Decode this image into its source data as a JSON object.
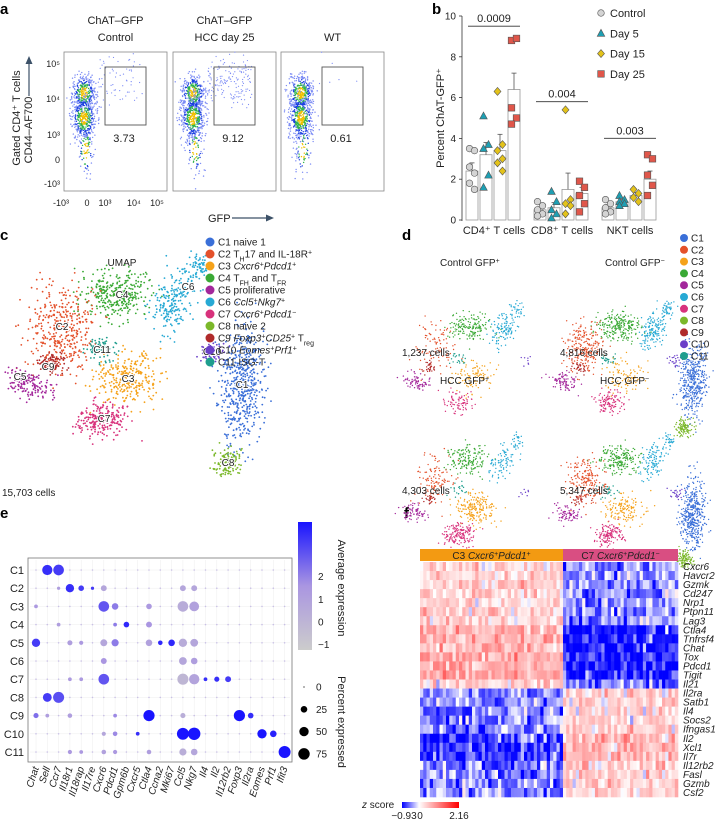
{
  "panel_labels": {
    "a": "a",
    "b": "b",
    "c": "c",
    "d": "d",
    "e": "e",
    "f": "f"
  },
  "panel_a": {
    "y_label_1": "Gated CD4⁺ T cells",
    "y_label_2": "CD44–AF700",
    "x_label": "GFP",
    "y_ticks": [
      "10⁵",
      "10⁴",
      "10³",
      "0",
      "-10³"
    ],
    "x_ticks": [
      "-10³",
      "0",
      "10³",
      "10⁴",
      "10⁵"
    ],
    "plots": [
      {
        "title1": "ChAT–GFP",
        "title2": "Control",
        "gate_pct": "3.73"
      },
      {
        "title1": "ChAT–GFP",
        "title2": "HCC day 25",
        "gate_pct": "9.12"
      },
      {
        "title1": "",
        "title2": "WT",
        "gate_pct": "0.61"
      }
    ]
  },
  "chart_data": {
    "type": "bar",
    "title": "",
    "ylabel": "Percent ChAT-GFP⁺",
    "ylim": [
      0,
      10
    ],
    "y_ticks": [
      "0",
      "2",
      "4",
      "6",
      "8",
      "10"
    ],
    "categories": [
      "CD4⁺ T cells",
      "CD8⁺ T cells",
      "NKT cells"
    ],
    "series": [
      {
        "name": "Control",
        "color": "#d4d4d4",
        "marker": "circle",
        "means": [
          2.4,
          0.5,
          0.6
        ],
        "errors": [
          0.4,
          0.15,
          0.15
        ],
        "points": [
          [
            3.5,
            3.4,
            2.6,
            2.3,
            1.8,
            1.5
          ],
          [
            0.9,
            0.7,
            0.5,
            0.3,
            0.2
          ],
          [
            1.0,
            0.8,
            0.6,
            0.4,
            0.3
          ]
        ]
      },
      {
        "name": "Day 5",
        "color": "#1e9fb3",
        "marker": "triangle",
        "means": [
          3.2,
          0.6,
          0.9
        ],
        "errors": [
          0.6,
          0.25,
          0.1
        ],
        "points": [
          [
            5.1,
            3.7,
            3.5,
            2.2,
            1.6
          ],
          [
            1.4,
            0.9,
            0.5,
            0.3,
            0.1
          ],
          [
            1.2,
            1.0,
            0.9,
            0.8,
            0.7
          ]
        ]
      },
      {
        "name": "Day 15",
        "color": "#e3c21a",
        "marker": "diamond",
        "means": [
          3.4,
          1.5,
          1.2
        ],
        "errors": [
          0.8,
          0.8,
          0.15
        ],
        "points": [
          [
            6.3,
            3.7,
            3.4,
            3.0,
            2.8,
            2.4
          ],
          [
            5.4,
            1.0,
            0.8,
            0.7,
            0.3
          ],
          [
            1.5,
            1.3,
            1.1,
            0.9
          ]
        ]
      },
      {
        "name": "Day 25",
        "color": "#e0564a",
        "marker": "square",
        "means": [
          6.4,
          1.3,
          2.0
        ],
        "errors": [
          0.8,
          0.3,
          0.4
        ],
        "points": [
          [
            8.8,
            8.9,
            5.5,
            5.0,
            4.7
          ],
          [
            1.9,
            1.6,
            1.2,
            0.8,
            0.4
          ],
          [
            3.2,
            3.0,
            2.2,
            1.7,
            1.2
          ]
        ]
      }
    ],
    "annotations": [
      {
        "category": 0,
        "text": "0.0009",
        "y": 9.6
      },
      {
        "category": 1,
        "text": "0.004",
        "y": 5.9
      },
      {
        "category": 2,
        "text": "0.003",
        "y": 4.1
      }
    ],
    "legend_position": "top-right",
    "grid": false
  },
  "panel_c": {
    "title": "UMAP",
    "cell_count": "15,703 cells",
    "cluster_labels": [
      "C1",
      "C2",
      "C3",
      "C4",
      "C5",
      "C6",
      "C7",
      "C8",
      "C9",
      "C10",
      "C11"
    ],
    "legend": [
      [
        {
          "t": "C1 naive 1"
        }
      ],
      [
        {
          "t": "C2 T"
        },
        {
          "t": "H",
          "sub": true
        },
        {
          "t": "17 and IL-18R"
        },
        {
          "t": "+",
          "sup": true
        }
      ],
      [
        {
          "t": "C3 "
        },
        {
          "t": "Cxcr6",
          "it": true
        },
        {
          "t": "+",
          "sup": true
        },
        {
          "t": "Pdcd1",
          "it": true
        },
        {
          "t": "+",
          "sup": true
        }
      ],
      [
        {
          "t": "C4 T"
        },
        {
          "t": "FH",
          "sub": true
        },
        {
          "t": " and T"
        },
        {
          "t": "FR",
          "sub": true
        }
      ],
      [
        {
          "t": "C5 proliferative"
        }
      ],
      [
        {
          "t": "C6 "
        },
        {
          "t": "Ccl5",
          "it": true
        },
        {
          "t": "+",
          "sup": true
        },
        {
          "t": "Nkg7",
          "it": true
        },
        {
          "t": "+",
          "sup": true
        }
      ],
      [
        {
          "t": "C7 "
        },
        {
          "t": "Cxcr6",
          "it": true
        },
        {
          "t": "+",
          "sup": true
        },
        {
          "t": "Pdcd1",
          "it": true
        },
        {
          "t": "−",
          "sup": true
        }
      ],
      [
        {
          "t": "C8 naive 2"
        }
      ],
      [
        {
          "t": "C9 "
        },
        {
          "t": "Foxp3",
          "it": true
        },
        {
          "t": "+",
          "sup": true
        },
        {
          "t": "CD25",
          "it": true
        },
        {
          "t": "+",
          "sup": true
        },
        {
          "t": " T"
        },
        {
          "t": "reg",
          "sub": true
        }
      ],
      [
        {
          "t": "C10 "
        },
        {
          "t": "Eomes",
          "it": true
        },
        {
          "t": "+",
          "sup": true
        },
        {
          "t": "Prf1",
          "it": true
        },
        {
          "t": "+",
          "sup": true
        }
      ],
      [
        {
          "t": "C11 ISG-T"
        }
      ]
    ]
  },
  "cluster_colors": [
    "#3a6fd8",
    "#e4512b",
    "#f5a21b",
    "#3aa935",
    "#a3279b",
    "#27a9d4",
    "#d8327c",
    "#7bb82a",
    "#b02b2b",
    "#6a3fc8",
    "#1f9e8e"
  ],
  "panel_d": {
    "legend": [
      "C1",
      "C2",
      "C3",
      "C4",
      "C5",
      "C6",
      "C7",
      "C8",
      "C9",
      "C10",
      "C11"
    ],
    "maps": [
      {
        "title": "Control GFP",
        "sup": "+",
        "cells": "1,237 cells"
      },
      {
        "title": "Control GFP",
        "sup": "−",
        "cells": "4,816 cells"
      },
      {
        "title": "HCC GFP",
        "sup": "+",
        "cells": "4,303 cells"
      },
      {
        "title": "HCC GFP",
        "sup": "−",
        "cells": "5,347 cells"
      }
    ]
  },
  "panel_e": {
    "clusters": [
      "C1",
      "C2",
      "C3",
      "C4",
      "C5",
      "C6",
      "C7",
      "C8",
      "C9",
      "C10",
      "C11"
    ],
    "genes": [
      "Chat",
      "Sell",
      "Ccr7",
      "Il18r1",
      "Il18rap",
      "Il17re",
      "Cxcr6",
      "Pdcd1",
      "Gpm6b",
      "Cxcr5",
      "Ctla4",
      "Ccna2",
      "Mki67",
      "Ccl5",
      "Nkg7",
      "Il4",
      "Il2",
      "Il12rb2",
      "Foxp3",
      "Il2ra",
      "Eomes",
      "Prf1",
      "Ifit3"
    ],
    "expression_label": "Average expression",
    "expression_ticks": [
      "2",
      "1",
      "0",
      "−1"
    ],
    "percent_label": "Percent expressed",
    "percent_ticks": [
      "0",
      "25",
      "50",
      "75"
    ],
    "dots": {
      "C1": {
        "Sell": [
          60,
          2.2
        ],
        "Ccr7": [
          65,
          2.0
        ]
      },
      "C2": {
        "Il18r1": [
          40,
          2.2
        ],
        "Il18rap": [
          18,
          2.0
        ],
        "Il17re": [
          6,
          2.0
        ],
        "Cxcr6": [
          20,
          0.0
        ],
        "Ccl5": [
          20,
          0.0
        ],
        "Nkg7": [
          20,
          0.0
        ],
        "Ccr7": [
          6,
          0.3
        ]
      },
      "C3": {
        "Chat": [
          8,
          0.5
        ],
        "Cxcr6": [
          65,
          1.6
        ],
        "Pdcd1": [
          25,
          1.0
        ],
        "Ctla4": [
          18,
          0.5
        ],
        "Ccl5": [
          65,
          -0.2
        ],
        "Nkg7": [
          55,
          0.2
        ]
      },
      "C4": {
        "Ccr7": [
          8,
          0.3
        ],
        "Pdcd1": [
          8,
          1.0
        ],
        "Gpm6b": [
          18,
          2.3
        ],
        "Ctla4": [
          20,
          0.6
        ]
      },
      "C5": {
        "Chat": [
          40,
          2.0
        ],
        "Il18r1": [
          15,
          0.3
        ],
        "Il18rap": [
          10,
          0.5
        ],
        "Cxcr6": [
          28,
          0.0
        ],
        "Pdcd1": [
          30,
          1.0
        ],
        "Ctla4": [
          25,
          0.2
        ],
        "Ccna2": [
          12,
          2.3
        ],
        "Mki67": [
          25,
          2.3
        ],
        "Ccl5": [
          40,
          -0.2
        ],
        "Nkg7": [
          35,
          0.0
        ]
      },
      "C6": {
        "Cxcr6": [
          20,
          0.6
        ],
        "Ccl5": [
          35,
          0.0
        ],
        "Nkg7": [
          25,
          0.3
        ]
      },
      "C7": {
        "Il18r1": [
          8,
          0.5
        ],
        "Il18rap": [
          8,
          0.5
        ],
        "Cxcr6": [
          65,
          1.6
        ],
        "Ccl5": [
          70,
          -0.6
        ],
        "Nkg7": [
          62,
          0.1
        ],
        "Il4": [
          8,
          2.2
        ],
        "Il2": [
          15,
          2.2
        ],
        "Il12rb2": [
          20,
          2.0
        ]
      },
      "C8": {
        "Sell": [
          45,
          2.0
        ],
        "Ccr7": [
          70,
          1.7
        ]
      },
      "C9": {
        "Chat": [
          15,
          1.2
        ],
        "Sell": [
          8,
          0.3
        ],
        "Il18r1": [
          12,
          0.3
        ],
        "Pdcd1": [
          8,
          0.8
        ],
        "Ctla4": [
          72,
          2.6
        ],
        "Ccl5": [
          15,
          -0.3
        ],
        "Foxp3": [
          72,
          2.6
        ],
        "Il2ra": [
          18,
          2.2
        ]
      },
      "C10": {
        "Cxcr6": [
          10,
          0.0
        ],
        "Pdcd1": [
          12,
          0.8
        ],
        "Cxcr5": [
          8,
          2.2
        ],
        "Ccl5": [
          82,
          2.6
        ],
        "Nkg7": [
          88,
          2.6
        ],
        "Eomes": [
          50,
          2.6
        ],
        "Prf1": [
          25,
          2.4
        ]
      },
      "C11": {
        "Il18r1": [
          10,
          0.5
        ],
        "Il18rap": [
          8,
          0.5
        ],
        "Cxcr6": [
          12,
          0.2
        ],
        "Pdcd1": [
          10,
          0.5
        ],
        "Ctla4": [
          12,
          0.3
        ],
        "Ccl5": [
          30,
          -0.3
        ],
        "Nkg7": [
          25,
          0.0
        ],
        "Ifit3": [
          82,
          2.6
        ]
      }
    }
  },
  "panel_f": {
    "group1": [
      {
        "t": "C3 "
      },
      {
        "t": "Cxcr6",
        "it": true
      },
      {
        "t": "+",
        "sup": true
      },
      {
        "t": "Pdcd1",
        "it": true
      },
      {
        "t": "+",
        "sup": true
      }
    ],
    "group2": [
      {
        "t": "C7 "
      },
      {
        "t": "Cxcr6",
        "it": true
      },
      {
        "t": "+",
        "sup": true
      },
      {
        "t": "Pdcd1",
        "it": true
      },
      {
        "t": "−",
        "sup": true
      }
    ],
    "group1_color": "#f39a12",
    "group2_color": "#d94e82",
    "genes": [
      "Cxcr6",
      "Havcr2",
      "Gzmk",
      "Cd247",
      "Nrp1",
      "Ptpn11",
      "Lag3",
      "Ctla4",
      "Tnfrsf4",
      "Chat",
      "Tox",
      "Pdcd1",
      "Tigit",
      "Il21",
      "Il2ra",
      "Satb1",
      "Il4",
      "Socs2",
      "Ifngas1",
      "Il2",
      "Xcl1",
      "Il7r",
      "Il12rb2",
      "Fasl",
      "Gzmb",
      "Csf2"
    ],
    "zscore_label": "z score",
    "zscore_ticks": [
      "−0.93",
      "0",
      "2.16"
    ],
    "zscore_range": [
      -0.93,
      2.16
    ]
  }
}
